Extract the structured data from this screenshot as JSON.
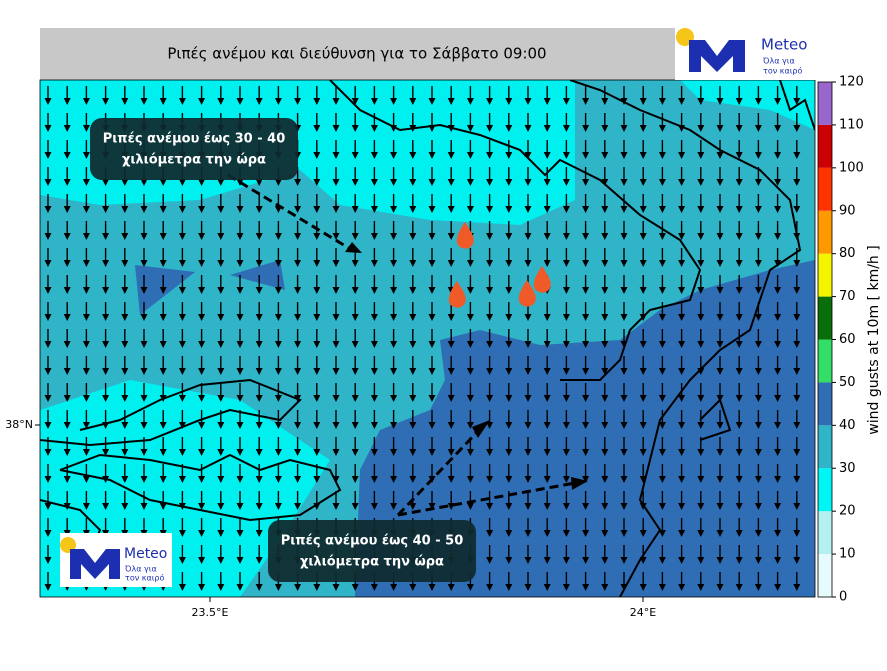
{
  "title": "Ριπές ανέμου και διεύθυνση για το Σάββατο 09:00",
  "logo": {
    "name": "Meteo",
    "tagline": [
      "Όλα για",
      "τον καιρό"
    ]
  },
  "annotations": [
    {
      "lines": [
        "Ριπές ανέμου έως 30 - 40",
        "χιλιόμετρα την ώρα"
      ]
    },
    {
      "lines": [
        "Ριπές ανέμου έως 40 - 50",
        "χιλιόμετρα την ώρα"
      ]
    }
  ],
  "axes": {
    "x_labels": [
      "23.5°E",
      "24°E"
    ],
    "y_labels": [
      "38°N"
    ]
  },
  "colorbar": {
    "label": "wind gusts at 10m [ km/h ]",
    "lim": [
      0,
      120
    ],
    "ticks": [
      0,
      10,
      20,
      30,
      40,
      50,
      60,
      70,
      80,
      90,
      100,
      110,
      120
    ],
    "colors": [
      "#e6fbfb",
      "#b4f0f0",
      "#00f5f5",
      "#2fb4c8",
      "#2f6db4",
      "#33dd66",
      "#0a6e0a",
      "#f5f500",
      "#ff9900",
      "#ff3300",
      "#cc0000",
      "#9966cc"
    ]
  }
}
